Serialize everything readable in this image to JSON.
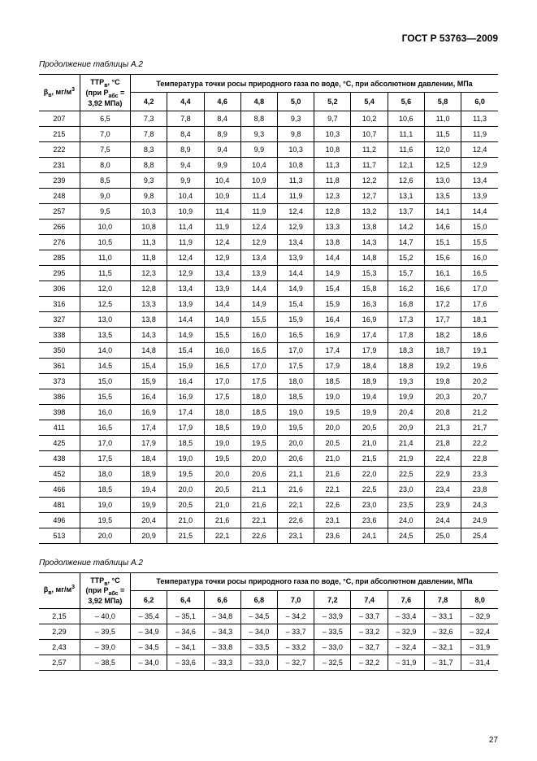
{
  "doc_header": "ГОСТ Р 53763—2009",
  "page_number": "27",
  "table1": {
    "caption": "Продолжение таблицы А.2",
    "col_beta": "β<sub>в</sub>, мг/м<sup>3</sup>",
    "col_ttr": "ТТР<sub>в</sub>, °С (при P<sub>абс</sub> = 3,92 МПа)",
    "col_header_span": "Температура точки росы природного газа по воде, °С, при абсолютном давлении, МПа",
    "pressures": [
      "4,2",
      "4,4",
      "4,6",
      "4,8",
      "5,0",
      "5,2",
      "5,4",
      "5,6",
      "5,8",
      "6,0"
    ],
    "rows": [
      {
        "b": "207",
        "t": "6,5",
        "v": [
          "7,3",
          "7,8",
          "8,4",
          "8,8",
          "9,3",
          "9,7",
          "10,2",
          "10,6",
          "11,0",
          "11,3"
        ]
      },
      {
        "b": "215",
        "t": "7,0",
        "v": [
          "7,8",
          "8,4",
          "8,9",
          "9,3",
          "9,8",
          "10,3",
          "10,7",
          "11,1",
          "11,5",
          "11,9"
        ]
      },
      {
        "b": "222",
        "t": "7,5",
        "v": [
          "8,3",
          "8,9",
          "9,4",
          "9,9",
          "10,3",
          "10,8",
          "11,2",
          "11,6",
          "12,0",
          "12,4"
        ]
      },
      {
        "b": "231",
        "t": "8,0",
        "v": [
          "8,8",
          "9,4",
          "9,9",
          "10,4",
          "10,8",
          "11,3",
          "11,7",
          "12,1",
          "12,5",
          "12,9"
        ]
      },
      {
        "b": "239",
        "t": "8,5",
        "v": [
          "9,3",
          "9,9",
          "10,4",
          "10,9",
          "11,3",
          "11,8",
          "12,2",
          "12,6",
          "13,0",
          "13,4"
        ]
      },
      {
        "b": "248",
        "t": "9,0",
        "v": [
          "9,8",
          "10,4",
          "10,9",
          "11,4",
          "11,9",
          "12,3",
          "12,7",
          "13,1",
          "13,5",
          "13,9"
        ]
      },
      {
        "b": "257",
        "t": "9,5",
        "v": [
          "10,3",
          "10,9",
          "11,4",
          "11,9",
          "12,4",
          "12,8",
          "13,2",
          "13,7",
          "14,1",
          "14,4"
        ]
      },
      {
        "b": "266",
        "t": "10,0",
        "v": [
          "10,8",
          "11,4",
          "11,9",
          "12,4",
          "12,9",
          "13,3",
          "13,8",
          "14,2",
          "14,6",
          "15,0"
        ]
      },
      {
        "b": "276",
        "t": "10,5",
        "v": [
          "11,3",
          "11,9",
          "12,4",
          "12,9",
          "13,4",
          "13,8",
          "14,3",
          "14,7",
          "15,1",
          "15,5"
        ]
      },
      {
        "b": "285",
        "t": "11,0",
        "v": [
          "11,8",
          "12,4",
          "12,9",
          "13,4",
          "13,9",
          "14,4",
          "14,8",
          "15,2",
          "15,6",
          "16,0"
        ]
      },
      {
        "b": "295",
        "t": "11,5",
        "v": [
          "12,3",
          "12,9",
          "13,4",
          "13,9",
          "14,4",
          "14,9",
          "15,3",
          "15,7",
          "16,1",
          "16,5"
        ]
      },
      {
        "b": "306",
        "t": "12,0",
        "v": [
          "12,8",
          "13,4",
          "13,9",
          "14,4",
          "14,9",
          "15,4",
          "15,8",
          "16,2",
          "16,6",
          "17,0"
        ]
      },
      {
        "b": "316",
        "t": "12,5",
        "v": [
          "13,3",
          "13,9",
          "14,4",
          "14,9",
          "15,4",
          "15,9",
          "16,3",
          "16,8",
          "17,2",
          "17,6"
        ]
      },
      {
        "b": "327",
        "t": "13,0",
        "v": [
          "13,8",
          "14,4",
          "14,9",
          "15,5",
          "15,9",
          "16,4",
          "16,9",
          "17,3",
          "17,7",
          "18,1"
        ]
      },
      {
        "b": "338",
        "t": "13,5",
        "v": [
          "14,3",
          "14,9",
          "15,5",
          "16,0",
          "16,5",
          "16,9",
          "17,4",
          "17,8",
          "18,2",
          "18,6"
        ]
      },
      {
        "b": "350",
        "t": "14,0",
        "v": [
          "14,8",
          "15,4",
          "16,0",
          "16,5",
          "17,0",
          "17,4",
          "17,9",
          "18,3",
          "18,7",
          "19,1"
        ]
      },
      {
        "b": "361",
        "t": "14,5",
        "v": [
          "15,4",
          "15,9",
          "16,5",
          "17,0",
          "17,5",
          "17,9",
          "18,4",
          "18,8",
          "19,2",
          "19,6"
        ]
      },
      {
        "b": "373",
        "t": "15,0",
        "v": [
          "15,9",
          "16,4",
          "17,0",
          "17,5",
          "18,0",
          "18,5",
          "18,9",
          "19,3",
          "19,8",
          "20,2"
        ]
      },
      {
        "b": "386",
        "t": "15,5",
        "v": [
          "16,4",
          "16,9",
          "17,5",
          "18,0",
          "18,5",
          "19,0",
          "19,4",
          "19,9",
          "20,3",
          "20,7"
        ]
      },
      {
        "b": "398",
        "t": "16,0",
        "v": [
          "16,9",
          "17,4",
          "18,0",
          "18,5",
          "19,0",
          "19,5",
          "19,9",
          "20,4",
          "20,8",
          "21,2"
        ]
      },
      {
        "b": "411",
        "t": "16,5",
        "v": [
          "17,4",
          "17,9",
          "18,5",
          "19,0",
          "19,5",
          "20,0",
          "20,5",
          "20,9",
          "21,3",
          "21,7"
        ]
      },
      {
        "b": "425",
        "t": "17,0",
        "v": [
          "17,9",
          "18,5",
          "19,0",
          "19,5",
          "20,0",
          "20,5",
          "21,0",
          "21,4",
          "21,8",
          "22,2"
        ]
      },
      {
        "b": "438",
        "t": "17,5",
        "v": [
          "18,4",
          "19,0",
          "19,5",
          "20,0",
          "20,6",
          "21,0",
          "21,5",
          "21,9",
          "22,4",
          "22,8"
        ]
      },
      {
        "b": "452",
        "t": "18,0",
        "v": [
          "18,9",
          "19,5",
          "20,0",
          "20,6",
          "21,1",
          "21,6",
          "22,0",
          "22,5",
          "22,9",
          "23,3"
        ]
      },
      {
        "b": "466",
        "t": "18,5",
        "v": [
          "19,4",
          "20,0",
          "20,5",
          "21,1",
          "21,6",
          "22,1",
          "22,5",
          "23,0",
          "23,4",
          "23,8"
        ]
      },
      {
        "b": "481",
        "t": "19,0",
        "v": [
          "19,9",
          "20,5",
          "21,0",
          "21,6",
          "22,1",
          "22,6",
          "23,0",
          "23,5",
          "23,9",
          "24,3"
        ]
      },
      {
        "b": "496",
        "t": "19,5",
        "v": [
          "20,4",
          "21,0",
          "21,6",
          "22,1",
          "22,6",
          "23,1",
          "23,6",
          "24,0",
          "24,4",
          "24,9"
        ]
      },
      {
        "b": "513",
        "t": "20,0",
        "v": [
          "20,9",
          "21,5",
          "22,1",
          "22,6",
          "23,1",
          "23,6",
          "24,1",
          "24,5",
          "25,0",
          "25,4"
        ]
      }
    ]
  },
  "table2": {
    "caption": "Продолжение таблицы А.2",
    "col_beta": "β<sub>в</sub>, мг/м<sup>3</sup>",
    "col_ttr": "ТТР<sub>в</sub>, °С (при P<sub>абс</sub> = 3,92 МПа)",
    "col_header_span": "Температура точки росы природного газа по воде, °С, при абсолютном давлении, МПа",
    "pressures": [
      "6,2",
      "6,4",
      "6,6",
      "6,8",
      "7,0",
      "7,2",
      "7,4",
      "7,6",
      "7,8",
      "8,0"
    ],
    "rows": [
      {
        "b": "2,15",
        "t": "– 40,0",
        "v": [
          "– 35,4",
          "– 35,1",
          "– 34,8",
          "– 34,5",
          "– 34,2",
          "– 33,9",
          "– 33,7",
          "– 33,4",
          "– 33,1",
          "– 32,9"
        ]
      },
      {
        "b": "2,29",
        "t": "– 39,5",
        "v": [
          "– 34,9",
          "– 34,6",
          "– 34,3",
          "– 34,0",
          "– 33,7",
          "– 33,5",
          "– 33,2",
          "– 32,9",
          "– 32,6",
          "– 32,4"
        ]
      },
      {
        "b": "2,43",
        "t": "– 39,0",
        "v": [
          "– 34,5",
          "– 34,1",
          "– 33,8",
          "– 33,5",
          "– 33,2",
          "– 33,0",
          "– 32,7",
          "– 32,4",
          "– 32,1",
          "– 31,9"
        ]
      },
      {
        "b": "2,57",
        "t": "– 38,5",
        "v": [
          "– 34,0",
          "– 33,6",
          "– 33,3",
          "– 33,0",
          "– 32,7",
          "– 32,5",
          "– 32,2",
          "– 31,9",
          "– 31,7",
          "– 31,4"
        ]
      }
    ]
  }
}
